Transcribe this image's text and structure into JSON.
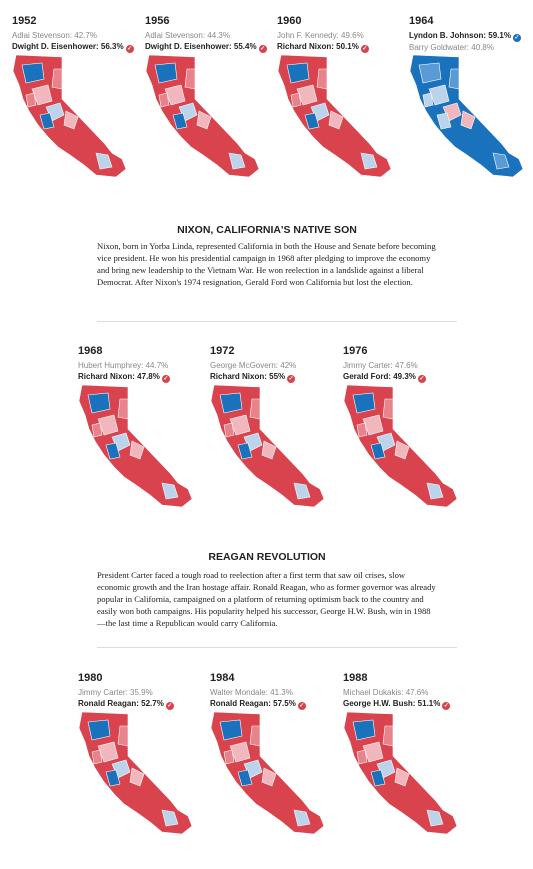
{
  "groups": [
    {
      "elections": [
        {
          "year": "1952",
          "loser": "Adlai Stevenson: 42.7%",
          "winner": "Dwight D. Eisenhower: 56.3%",
          "color": "#d9434e"
        },
        {
          "year": "1956",
          "loser": "Adlai Stevenson: 44.3%",
          "winner": "Dwight D. Eisenhower: 55.4%",
          "color": "#d9434e"
        },
        {
          "year": "1960",
          "loser": "John F. Kennedy: 49.6%",
          "winner": "Richard Nixon: 50.1%",
          "color": "#d9434e"
        },
        {
          "year": "1964",
          "winner": "Lyndon B. Johnson: 59.1%",
          "loser": "Barry Goldwater: 40.8%",
          "color": "#1a72bd"
        }
      ]
    },
    {
      "heading": "NIXON, CALIFORNIA'S NATIVE SON",
      "text": "Nixon, born in Yorba Linda, represented California in both the House and Senate before becoming vice president. He won his presidential campaign in 1968 after pledging to improve the economy and bring new leadership to the Vietnam War. He won reelection in a landslide against a liberal Democrat. After Nixon's 1974 resignation, Gerald Ford won California but lost the election.",
      "elections": [
        {
          "year": "1968",
          "loser": "Hubert Humphrey: 44.7%",
          "winner": "Richard Nixon: 47.8%",
          "color": "#d9434e"
        },
        {
          "year": "1972",
          "loser": "George McGovern: 42%",
          "winner": "Richard Nixon: 55%",
          "color": "#d9434e"
        },
        {
          "year": "1976",
          "loser": "Jimmy Carter: 47.6%",
          "winner": "Gerald Ford: 49.3%",
          "color": "#d9434e"
        }
      ]
    },
    {
      "heading": "REAGAN REVOLUTION",
      "text": "President Carter faced a tough road to reelection after a first term that saw oil crises, slow economic growth and the Iran hostage affair. Ronald Reagan, who as former governor was already popular in California, campaigned on a platform of returning optimism back to the country and easily won both campaigns. His popularity helped his successor, George H.W. Bush, win in 1988—the last time a Republican would carry California.",
      "elections": [
        {
          "year": "1980",
          "loser": "Jimmy Carter: 35.9%",
          "winner": "Ronald Reagan: 52.7%",
          "color": "#d9434e"
        },
        {
          "year": "1984",
          "loser": "Walter Mondale: 41.3%",
          "winner": "Ronald Reagan: 57.5%",
          "color": "#d9434e"
        },
        {
          "year": "1988",
          "loser": "Michael Dukakis: 47.6%",
          "winner": "George H.W. Bush: 51.1%",
          "color": "#d9434e"
        }
      ]
    }
  ]
}
